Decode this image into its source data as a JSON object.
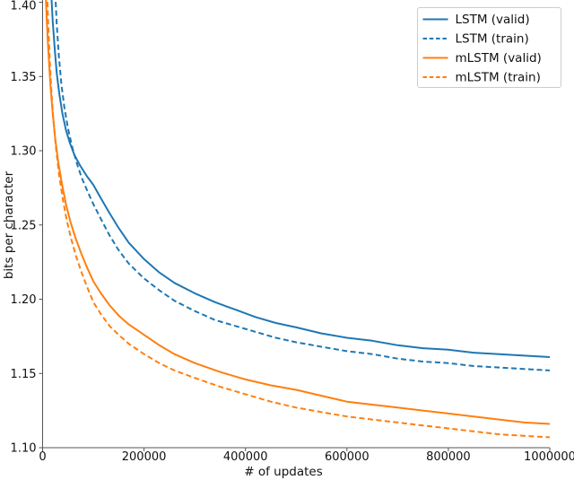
{
  "figure": {
    "kind": "matplotlib-line-plot",
    "background": "#ffffff",
    "spine_color": "#555555",
    "text_color": "#111111",
    "legend_border_color": "#cccccc"
  },
  "chart_data": {
    "type": "line",
    "title": "",
    "xlabel": "# of updates",
    "ylabel": "bits per character",
    "xlim": [
      0,
      1000000
    ],
    "ylim": [
      1.1,
      1.4
    ],
    "grid": false,
    "x_ticks": [
      0,
      200000,
      400000,
      600000,
      800000,
      1000000
    ],
    "x_tick_labels": [
      "0",
      "200000",
      "400000",
      "600000",
      "800000",
      "1000000"
    ],
    "y_ticks": [
      1.4,
      1.35,
      1.3,
      1.25,
      1.2,
      1.15,
      1.1
    ],
    "y_tick_labels": [
      "1.40",
      "1.35",
      "1.30",
      "1.25",
      "1.20",
      "1.15",
      "1.10"
    ],
    "legend": {
      "position": "upper right",
      "entries": [
        "LSTM (valid)",
        "LSTM (train)",
        "mLSTM (valid)",
        "mLSTM (train)"
      ]
    },
    "series": [
      {
        "name": "LSTM (valid)",
        "slug": "lstm-valid",
        "color": "#1f77b4",
        "style": "solid",
        "x": [
          17000,
          20000,
          24000,
          28000,
          33000,
          39000,
          46000,
          54000,
          63000,
          74000,
          87000,
          100000,
          115000,
          132000,
          150000,
          170000,
          200000,
          230000,
          260000,
          300000,
          340000,
          380000,
          420000,
          460000,
          500000,
          550000,
          600000,
          650000,
          700000,
          750000,
          800000,
          850000,
          900000,
          950000,
          1000000
        ],
        "y": [
          1.406,
          1.387,
          1.368,
          1.352,
          1.338,
          1.325,
          1.314,
          1.305,
          1.297,
          1.29,
          1.283,
          1.277,
          1.268,
          1.258,
          1.248,
          1.238,
          1.227,
          1.218,
          1.211,
          1.204,
          1.198,
          1.193,
          1.188,
          1.184,
          1.181,
          1.177,
          1.174,
          1.172,
          1.169,
          1.167,
          1.166,
          1.164,
          1.163,
          1.162,
          1.161
        ]
      },
      {
        "name": "LSTM (train)",
        "slug": "lstm-train",
        "color": "#1f77b4",
        "style": "dashed",
        "x": [
          25000,
          28000,
          32000,
          37000,
          43000,
          50000,
          58000,
          67000,
          77000,
          88000,
          100000,
          115000,
          132000,
          150000,
          170000,
          200000,
          230000,
          260000,
          300000,
          340000,
          380000,
          420000,
          460000,
          500000,
          550000,
          600000,
          650000,
          700000,
          750000,
          800000,
          850000,
          900000,
          950000,
          1000000
        ],
        "y": [
          1.406,
          1.385,
          1.364,
          1.345,
          1.329,
          1.315,
          1.303,
          1.292,
          1.282,
          1.273,
          1.264,
          1.254,
          1.243,
          1.233,
          1.224,
          1.214,
          1.206,
          1.199,
          1.192,
          1.186,
          1.182,
          1.178,
          1.174,
          1.171,
          1.168,
          1.165,
          1.163,
          1.16,
          1.158,
          1.157,
          1.155,
          1.154,
          1.153,
          1.152
        ]
      },
      {
        "name": "mLSTM (valid)",
        "slug": "mlstm-valid",
        "color": "#ff7f0e",
        "style": "solid",
        "x": [
          6000,
          8000,
          10000,
          13000,
          16000,
          20000,
          25000,
          31000,
          38000,
          46000,
          55000,
          65000,
          76000,
          88000,
          100000,
          115000,
          132000,
          150000,
          170000,
          200000,
          230000,
          260000,
          300000,
          350000,
          400000,
          450000,
          500000,
          550000,
          600000,
          650000,
          700000,
          750000,
          800000,
          850000,
          900000,
          950000,
          1000000
        ],
        "y": [
          1.406,
          1.39,
          1.375,
          1.357,
          1.342,
          1.325,
          1.308,
          1.292,
          1.278,
          1.264,
          1.252,
          1.241,
          1.231,
          1.221,
          1.212,
          1.204,
          1.196,
          1.189,
          1.183,
          1.176,
          1.169,
          1.163,
          1.157,
          1.151,
          1.146,
          1.142,
          1.139,
          1.135,
          1.131,
          1.129,
          1.127,
          1.125,
          1.123,
          1.121,
          1.119,
          1.117,
          1.116
        ]
      },
      {
        "name": "mLSTM (train)",
        "slug": "mlstm-train",
        "color": "#ff7f0e",
        "style": "dashed",
        "x": [
          9000,
          11000,
          14000,
          17000,
          21000,
          26000,
          32000,
          39000,
          47000,
          56000,
          66000,
          77000,
          88000,
          100000,
          115000,
          132000,
          150000,
          170000,
          200000,
          230000,
          260000,
          300000,
          350000,
          400000,
          450000,
          500000,
          550000,
          600000,
          650000,
          700000,
          750000,
          800000,
          850000,
          900000,
          950000,
          1000000
        ],
        "y": [
          1.406,
          1.386,
          1.362,
          1.342,
          1.322,
          1.303,
          1.285,
          1.269,
          1.254,
          1.241,
          1.229,
          1.218,
          1.208,
          1.198,
          1.19,
          1.182,
          1.176,
          1.17,
          1.163,
          1.157,
          1.152,
          1.147,
          1.141,
          1.136,
          1.131,
          1.127,
          1.124,
          1.121,
          1.119,
          1.117,
          1.115,
          1.113,
          1.111,
          1.109,
          1.108,
          1.107
        ]
      }
    ]
  }
}
